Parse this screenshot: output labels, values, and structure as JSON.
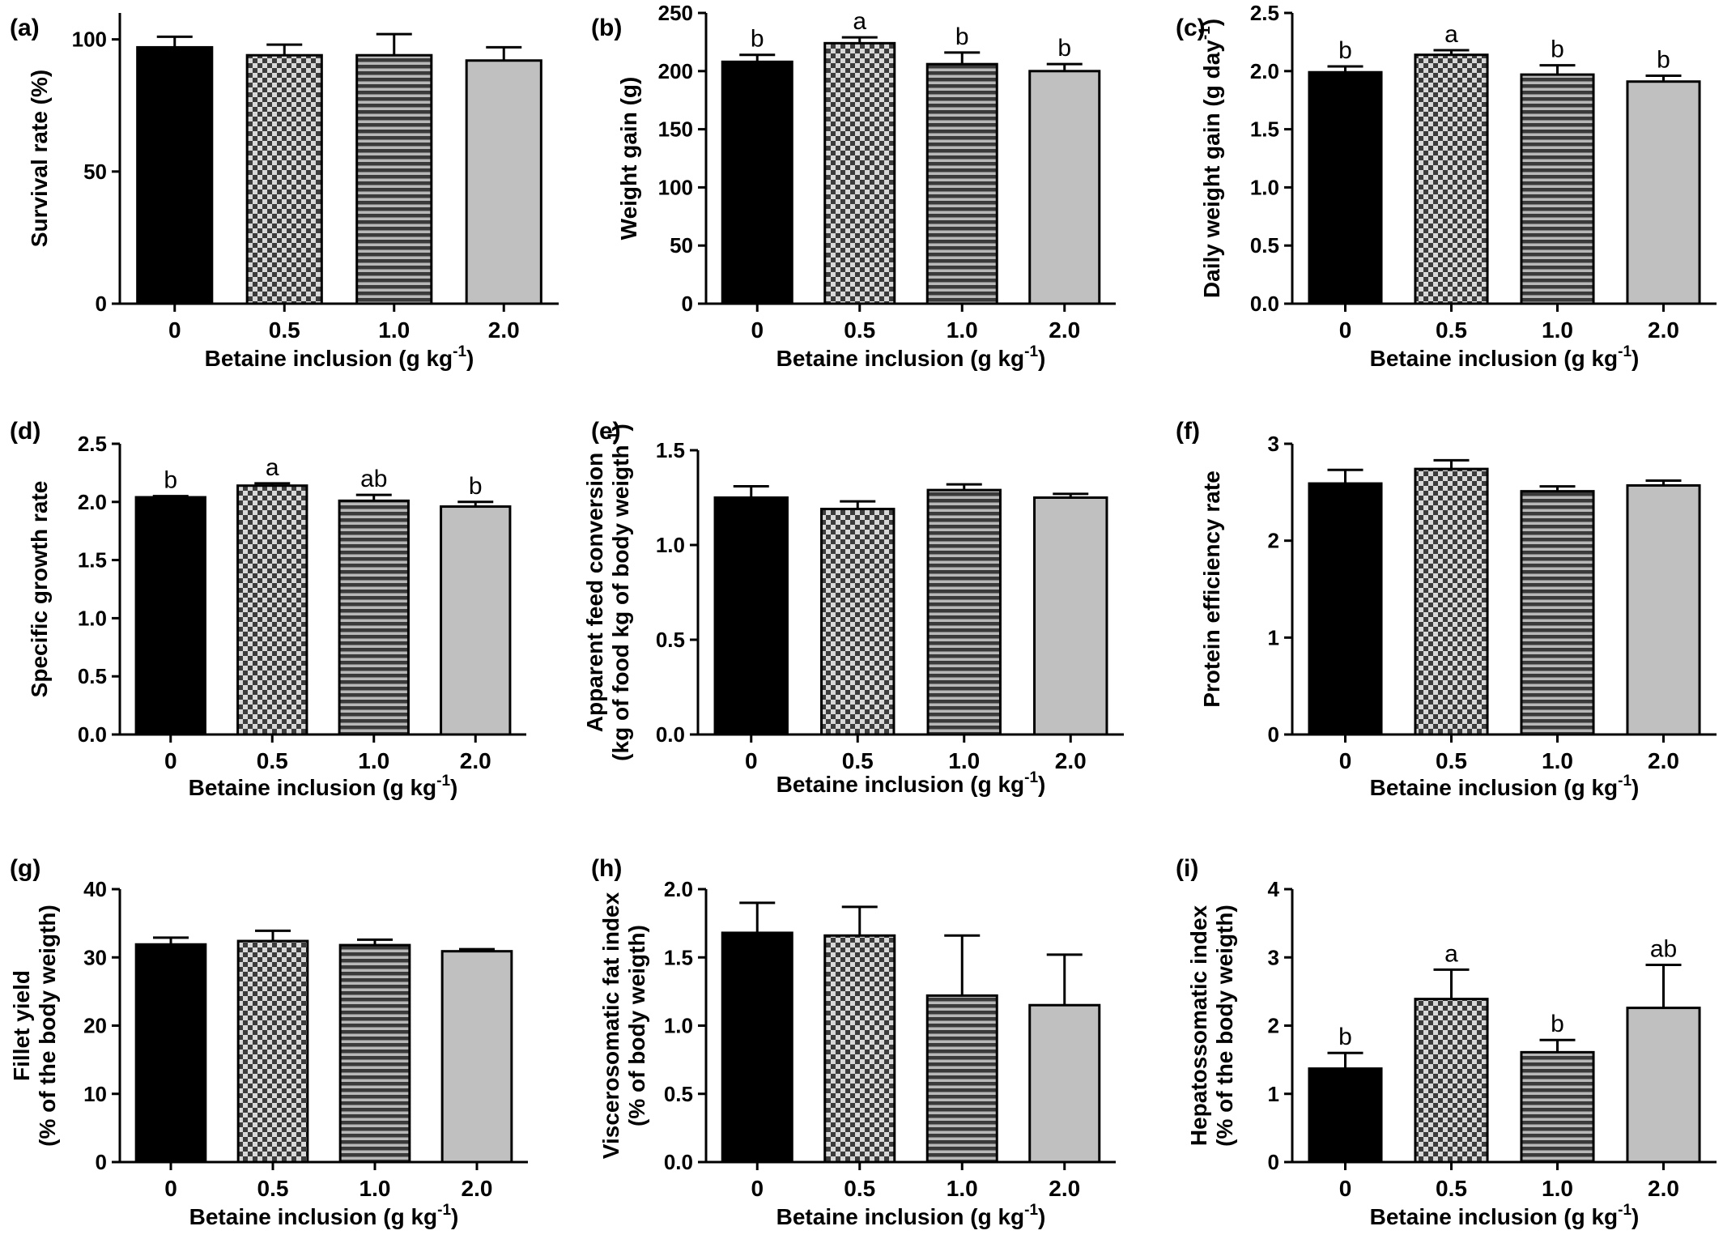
{
  "figure": {
    "colors": {
      "bar_solid": "#000000",
      "bar_checker": "#5a5a5a",
      "bar_stripe": "#4a4a4a",
      "bar_light": "#c0c0c0",
      "axis": "#000000"
    },
    "fills": [
      "solid-black",
      "checkerboard",
      "horizontal-stripes",
      "light-gray"
    ]
  },
  "chart_data": [
    {
      "type": "bar",
      "panel": "(a)",
      "categories": [
        "0",
        "0.5",
        "1.0",
        "2.0"
      ],
      "values": [
        97,
        94,
        94,
        92
      ],
      "errors": [
        4,
        4,
        8,
        5
      ],
      "sig_labels": [
        "",
        "",
        "",
        ""
      ],
      "ylim": [
        0,
        110
      ],
      "yticks": [
        0,
        50,
        100
      ],
      "ytick_labels": [
        "0",
        "50",
        "100"
      ],
      "ylabel": [
        "Survival rate (%)"
      ],
      "xlabel": "Betaine inclusion (g kg",
      "xlabel_sup": "-1",
      "xlabel_tail": ")"
    },
    {
      "type": "bar",
      "panel": "(b)",
      "categories": [
        "0",
        "0.5",
        "1.0",
        "2.0"
      ],
      "values": [
        208,
        224,
        206,
        200
      ],
      "errors": [
        6,
        5,
        10,
        6
      ],
      "sig_labels": [
        "b",
        "a",
        "b",
        "b"
      ],
      "ylim": [
        0,
        250
      ],
      "yticks": [
        0,
        50,
        100,
        150,
        200,
        250
      ],
      "ytick_labels": [
        "0",
        "50",
        "100",
        "150",
        "200",
        "250"
      ],
      "ylabel": [
        "Weight gain (g)"
      ],
      "xlabel": "Betaine inclusion (g kg",
      "xlabel_sup": "-1",
      "xlabel_tail": ")"
    },
    {
      "type": "bar",
      "panel": "(c)",
      "categories": [
        "0",
        "0.5",
        "1.0",
        "2.0"
      ],
      "values": [
        1.99,
        2.14,
        1.97,
        1.91
      ],
      "errors": [
        0.05,
        0.04,
        0.08,
        0.05
      ],
      "sig_labels": [
        "b",
        "a",
        "b",
        "b"
      ],
      "ylim": [
        0,
        2.5
      ],
      "yticks": [
        0,
        0.5,
        1,
        1.5,
        2,
        2.5
      ],
      "ytick_labels": [
        "0.0",
        "0.5",
        "1.0",
        "1.5",
        "2.0",
        "2.5"
      ],
      "ylabel": [
        "Daily weight gain (g day",
        "-1",
        ")"
      ],
      "ylabel_sup": true,
      "xlabel": "Betaine inclusion (g kg",
      "xlabel_sup": "-1",
      "xlabel_tail": ")"
    },
    {
      "type": "bar",
      "panel": "(d)",
      "categories": [
        "0",
        "0.5",
        "1.0",
        "2.0"
      ],
      "values": [
        2.04,
        2.14,
        2.01,
        1.96
      ],
      "errors": [
        0.01,
        0.02,
        0.05,
        0.04
      ],
      "sig_labels": [
        "b",
        "a",
        "ab",
        "b"
      ],
      "ylim": [
        0,
        2.5
      ],
      "yticks": [
        0,
        0.5,
        1,
        1.5,
        2,
        2.5
      ],
      "ytick_labels": [
        "0.0",
        "0.5",
        "1.0",
        "1.5",
        "2.0",
        "2.5"
      ],
      "ylabel": [
        "Specific growth rate"
      ],
      "xlabel": "Betaine inclusion (g kg",
      "xlabel_sup": "-1",
      "xlabel_tail": ")"
    },
    {
      "type": "bar",
      "panel": "(e)",
      "categories": [
        "0",
        "0.5",
        "1.0",
        "2.0"
      ],
      "values": [
        1.25,
        1.19,
        1.29,
        1.25
      ],
      "errors": [
        0.06,
        0.04,
        0.03,
        0.02
      ],
      "sig_labels": [
        "",
        "",
        "",
        ""
      ],
      "ylim": [
        0,
        1.5
      ],
      "yticks": [
        0,
        0.5,
        1,
        1.5
      ],
      "ytick_labels": [
        "0.0",
        "0.5",
        "1.0",
        "1.5"
      ],
      "ylabel": [
        "Apparent feed conversion",
        "(kg of food kg of body weigth",
        "-1",
        ")"
      ],
      "ylabel_sup": true,
      "xlabel": "Betaine inclusion (g kg",
      "xlabel_sup": "-1",
      "xlabel_tail": ")"
    },
    {
      "type": "bar",
      "panel": "(f)",
      "categories": [
        "0",
        "0.5",
        "1.0",
        "2.0"
      ],
      "values": [
        2.59,
        2.74,
        2.51,
        2.57
      ],
      "errors": [
        0.14,
        0.09,
        0.05,
        0.05
      ],
      "sig_labels": [
        "",
        "",
        "",
        ""
      ],
      "ylim": [
        0,
        3
      ],
      "yticks": [
        0,
        1,
        2,
        3
      ],
      "ytick_labels": [
        "0",
        "1",
        "2",
        "3"
      ],
      "ylabel": [
        "Protein efficiency rate"
      ],
      "xlabel": "Betaine inclusion (g kg",
      "xlabel_sup": "-1",
      "xlabel_tail": ")"
    },
    {
      "type": "bar",
      "panel": "(g)",
      "categories": [
        "0",
        "0.5",
        "1.0",
        "2.0"
      ],
      "values": [
        31.9,
        32.4,
        31.8,
        30.9
      ],
      "errors": [
        1.0,
        1.5,
        0.8,
        0.3
      ],
      "sig_labels": [
        "",
        "",
        "",
        ""
      ],
      "ylim": [
        0,
        40
      ],
      "yticks": [
        0,
        10,
        20,
        30,
        40
      ],
      "ytick_labels": [
        "0",
        "10",
        "20",
        "30",
        "40"
      ],
      "ylabel": [
        "Fillet yield",
        "(% of the body weigth)"
      ],
      "xlabel": "Betaine inclusion (g kg",
      "xlabel_sup": "-1",
      "xlabel_tail": ")"
    },
    {
      "type": "bar",
      "panel": "(h)",
      "categories": [
        "0",
        "0.5",
        "1.0",
        "2.0"
      ],
      "values": [
        1.68,
        1.66,
        1.22,
        1.15
      ],
      "errors": [
        0.22,
        0.21,
        0.44,
        0.37
      ],
      "sig_labels": [
        "",
        "",
        "",
        ""
      ],
      "ylim": [
        0,
        2.0
      ],
      "yticks": [
        0,
        0.5,
        1,
        1.5,
        2
      ],
      "ytick_labels": [
        "0.0",
        "0.5",
        "1.0",
        "1.5",
        "2.0"
      ],
      "ylabel": [
        "Viscerosomatic fat index",
        "(% of body weigth)"
      ],
      "xlabel": "Betaine inclusion (g kg",
      "xlabel_sup": "-1",
      "xlabel_tail": ")"
    },
    {
      "type": "bar",
      "panel": "(i)",
      "categories": [
        "0",
        "0.5",
        "1.0",
        "2.0"
      ],
      "values": [
        1.37,
        2.39,
        1.61,
        2.26
      ],
      "errors": [
        0.23,
        0.43,
        0.18,
        0.63
      ],
      "sig_labels": [
        "b",
        "a",
        "b",
        "ab"
      ],
      "ylim": [
        0,
        4
      ],
      "yticks": [
        0,
        1,
        2,
        3,
        4
      ],
      "ytick_labels": [
        "0",
        "1",
        "2",
        "3",
        "4"
      ],
      "ylabel": [
        "Hepatossomatic index",
        "(% of the body weigth)"
      ],
      "xlabel": "Betaine inclusion (g kg",
      "xlabel_sup": "-1",
      "xlabel_tail": ")"
    }
  ]
}
